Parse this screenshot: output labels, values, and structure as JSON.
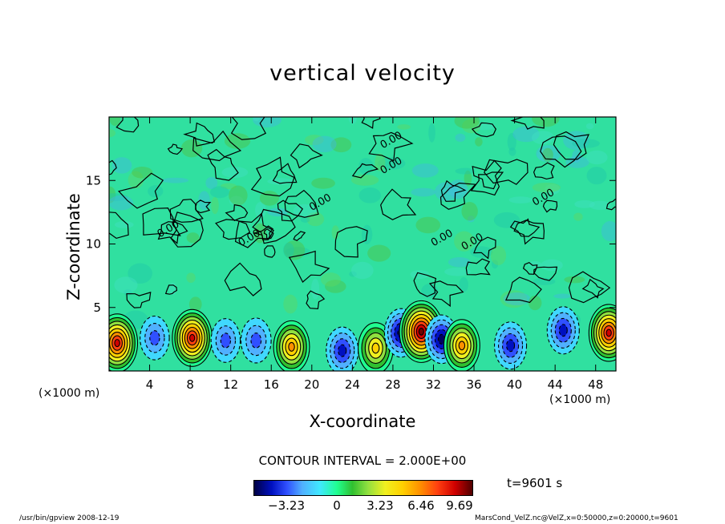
{
  "chart_data": {
    "type": "heatmap",
    "title": "vertical velocity",
    "xlabel": "X-coordinate",
    "ylabel": "Z-coordinate",
    "xunit": "(×1000 m)",
    "x_ticks": [
      4,
      8,
      12,
      16,
      20,
      24,
      28,
      32,
      36,
      40,
      44,
      48
    ],
    "y_ticks": [
      5,
      10,
      15
    ],
    "xlim": [
      0,
      50
    ],
    "ylim": [
      0,
      20
    ],
    "contour_labels": [
      "0.00",
      "0.00",
      "0.00",
      "0.00",
      "0.00",
      "0.00",
      "0.00",
      "0.00"
    ],
    "contour_interval": "CONTOUR INTERVAL = 2.000E+00",
    "colorbar_ticks": [
      "−3.23",
      "0",
      "3.23",
      "6.46",
      "9.69"
    ],
    "colorbar_values": [
      -3.23,
      0,
      3.23,
      6.46,
      9.69
    ],
    "colorbar_range": [
      -6.0,
      11.5
    ],
    "time": "t=9601 s",
    "cells_low_level": [
      {
        "x": 0.8,
        "z": 2.2,
        "w": 9.5
      },
      {
        "x": 4.5,
        "z": 2.6,
        "w": -3.5
      },
      {
        "x": 8.2,
        "z": 2.6,
        "w": 9.0
      },
      {
        "x": 11.5,
        "z": 2.4,
        "w": -3.5
      },
      {
        "x": 14.5,
        "z": 2.4,
        "w": -4.0
      },
      {
        "x": 18.0,
        "z": 1.9,
        "w": 7.0
      },
      {
        "x": 23.0,
        "z": 1.6,
        "w": -5.0
      },
      {
        "x": 26.3,
        "z": 1.8,
        "w": 6.5
      },
      {
        "x": 28.8,
        "z": 3.0,
        "w": -5.5
      },
      {
        "x": 30.8,
        "z": 3.1,
        "w": 11.0
      },
      {
        "x": 32.8,
        "z": 2.5,
        "w": -5.5
      },
      {
        "x": 34.8,
        "z": 2.0,
        "w": 7.0
      },
      {
        "x": 39.6,
        "z": 2.0,
        "w": -5.0
      },
      {
        "x": 44.8,
        "z": 3.2,
        "w": -5.0
      },
      {
        "x": 49.3,
        "z": 3.0,
        "w": 9.0
      }
    ],
    "colors": {
      "background": "#30e0a0",
      "mid": "#30d890",
      "contour": "#000000"
    }
  },
  "footer": {
    "left": "/usr/bin/gpview  2008-12-19",
    "right": "MarsCond_VelZ.nc@VelZ,x=0:50000,z=0:20000,t=9601"
  }
}
